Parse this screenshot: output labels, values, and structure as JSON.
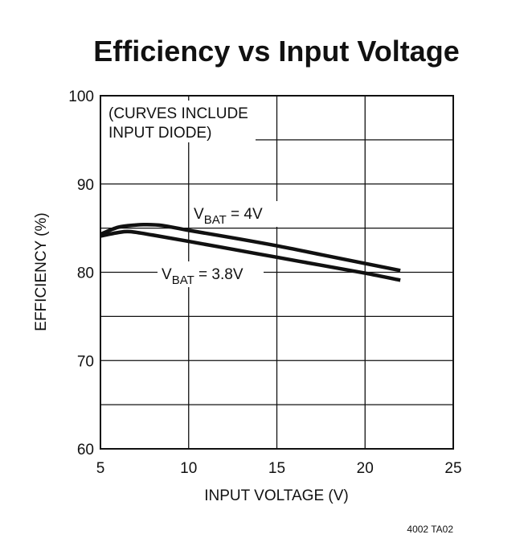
{
  "chart_data": {
    "type": "line",
    "title": "Efficiency vs Input Voltage",
    "xlabel": "INPUT VOLTAGE (V)",
    "ylabel": "EFFICIENCY (%)",
    "xlim": [
      5,
      25
    ],
    "ylim": [
      60,
      100
    ],
    "xticks": [
      5,
      10,
      15,
      20,
      25
    ],
    "yticks": [
      60,
      70,
      80,
      90,
      100
    ],
    "grid": true,
    "annotation_lines": [
      "(CURVES INCLUDE",
      "INPUT DIODE)"
    ],
    "series": [
      {
        "name": "VBAT = 4V",
        "label_main": "V",
        "label_sub": "BAT",
        "label_rest": " = 4V",
        "x": [
          5,
          6,
          7,
          7.5,
          8.5,
          10,
          12.5,
          15,
          17.5,
          20,
          22
        ],
        "y": [
          84.3,
          85.1,
          85.35,
          85.4,
          85.3,
          84.75,
          83.9,
          83.0,
          82.0,
          81.0,
          80.2
        ]
      },
      {
        "name": "VBAT = 3.8V",
        "label_main": "V",
        "label_sub": "BAT",
        "label_rest": " = 3.8V",
        "x": [
          5,
          6,
          6.7,
          8,
          10,
          12.5,
          15,
          17.5,
          20,
          22
        ],
        "y": [
          84.1,
          84.5,
          84.6,
          84.2,
          83.5,
          82.6,
          81.7,
          80.8,
          79.9,
          79.1
        ]
      }
    ],
    "figure_code": "4002 TA02"
  }
}
